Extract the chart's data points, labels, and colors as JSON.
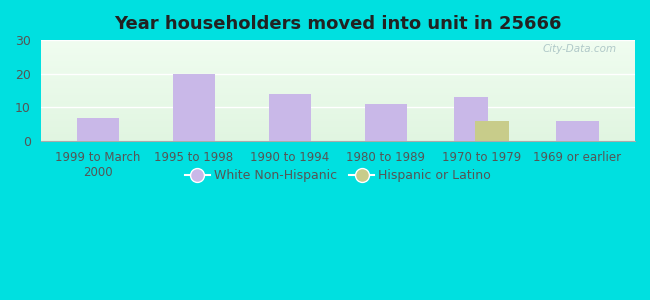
{
  "title": "Year householders moved into unit in 25666",
  "categories": [
    "1999 to March\n2000",
    "1995 to 1998",
    "1990 to 1994",
    "1980 to 1989",
    "1970 to 1979",
    "1969 or earlier"
  ],
  "white_values": [
    7,
    20,
    14,
    11,
    13,
    6
  ],
  "hispanic_values": [
    0,
    0,
    0,
    0,
    6,
    0
  ],
  "white_color": "#c9b8e8",
  "hispanic_color": "#c8cc8a",
  "ylim": [
    0,
    30
  ],
  "yticks": [
    0,
    10,
    20,
    30
  ],
  "background_outer": "#00e0e0",
  "bar_width": 0.4,
  "legend_white": "White Non-Hispanic",
  "legend_hispanic": "Hispanic or Latino",
  "watermark": "City-Data.com"
}
